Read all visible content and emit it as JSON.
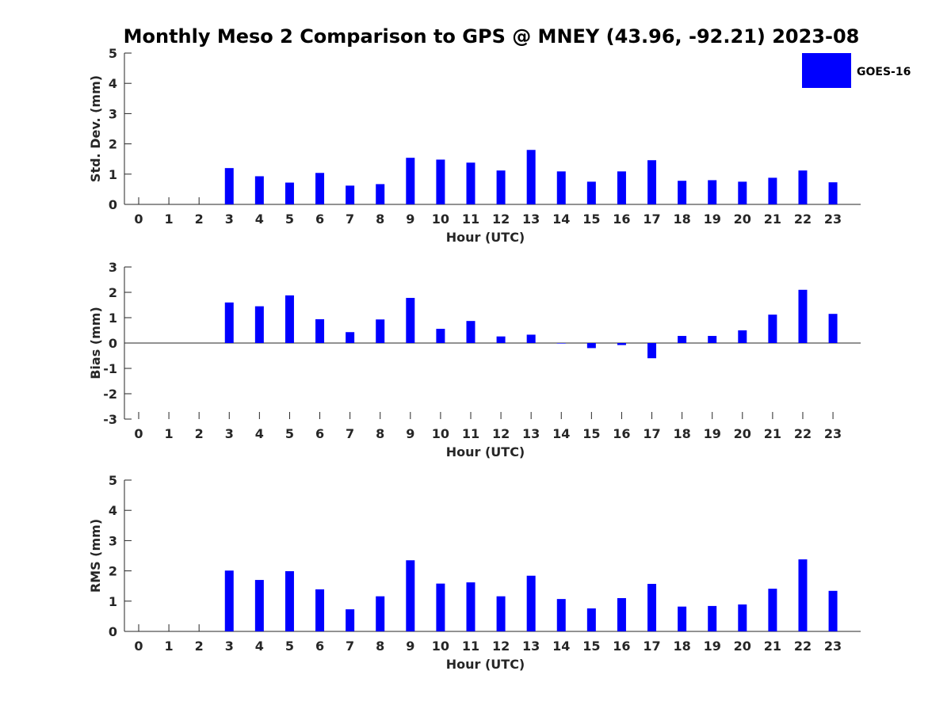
{
  "title": "Monthly Meso 2 Comparison to GPS @ MNEY (43.96, -92.21) 2023-08",
  "legend": {
    "label": "GOES-16",
    "placement": "top-right",
    "color": "#0000ff"
  },
  "bar_color": "#0000ff",
  "chart_data": [
    {
      "type": "bar",
      "xlabel": "Hour (UTC)",
      "ylabel": "Std. Dev. (mm)",
      "ylim": [
        0,
        5
      ],
      "yticks": [
        0,
        1,
        2,
        3,
        4,
        5
      ],
      "categories": [
        "0",
        "1",
        "2",
        "3",
        "4",
        "5",
        "6",
        "7",
        "8",
        "9",
        "10",
        "11",
        "12",
        "13",
        "14",
        "15",
        "16",
        "17",
        "18",
        "19",
        "20",
        "21",
        "22",
        "23"
      ],
      "values": [
        null,
        null,
        null,
        1.2,
        0.93,
        0.72,
        1.04,
        0.62,
        0.67,
        1.54,
        1.48,
        1.38,
        1.12,
        1.8,
        1.09,
        0.75,
        1.09,
        1.46,
        0.78,
        0.8,
        0.75,
        0.88,
        1.12,
        0.73
      ],
      "series": [
        {
          "name": "GOES-16"
        }
      ],
      "grid": false
    },
    {
      "type": "bar",
      "xlabel": "Hour (UTC)",
      "ylabel": "Bias (mm)",
      "ylim": [
        -3,
        3
      ],
      "yticks": [
        -3,
        -2,
        -1,
        0,
        1,
        2,
        3
      ],
      "categories": [
        "0",
        "1",
        "2",
        "3",
        "4",
        "5",
        "6",
        "7",
        "8",
        "9",
        "10",
        "11",
        "12",
        "13",
        "14",
        "15",
        "16",
        "17",
        "18",
        "19",
        "20",
        "21",
        "22",
        "23"
      ],
      "values": [
        null,
        null,
        null,
        1.6,
        1.45,
        1.88,
        0.94,
        0.43,
        0.93,
        1.78,
        0.56,
        0.87,
        0.26,
        0.33,
        -0.02,
        -0.2,
        -0.08,
        -0.6,
        0.28,
        0.28,
        0.5,
        1.12,
        2.1,
        1.15
      ],
      "series": [
        {
          "name": "GOES-16"
        }
      ],
      "grid": false
    },
    {
      "type": "bar",
      "xlabel": "Hour (UTC)",
      "ylabel": "RMS (mm)",
      "ylim": [
        0,
        5
      ],
      "yticks": [
        0,
        1,
        2,
        3,
        4,
        5
      ],
      "categories": [
        "0",
        "1",
        "2",
        "3",
        "4",
        "5",
        "6",
        "7",
        "8",
        "9",
        "10",
        "11",
        "12",
        "13",
        "14",
        "15",
        "16",
        "17",
        "18",
        "19",
        "20",
        "21",
        "22",
        "23"
      ],
      "values": [
        null,
        null,
        null,
        2.01,
        1.7,
        1.99,
        1.39,
        0.73,
        1.16,
        2.35,
        1.58,
        1.62,
        1.16,
        1.84,
        1.07,
        0.76,
        1.1,
        1.57,
        0.82,
        0.84,
        0.89,
        1.41,
        2.38,
        1.34
      ],
      "series": [
        {
          "name": "GOES-16"
        }
      ],
      "grid": false
    }
  ]
}
